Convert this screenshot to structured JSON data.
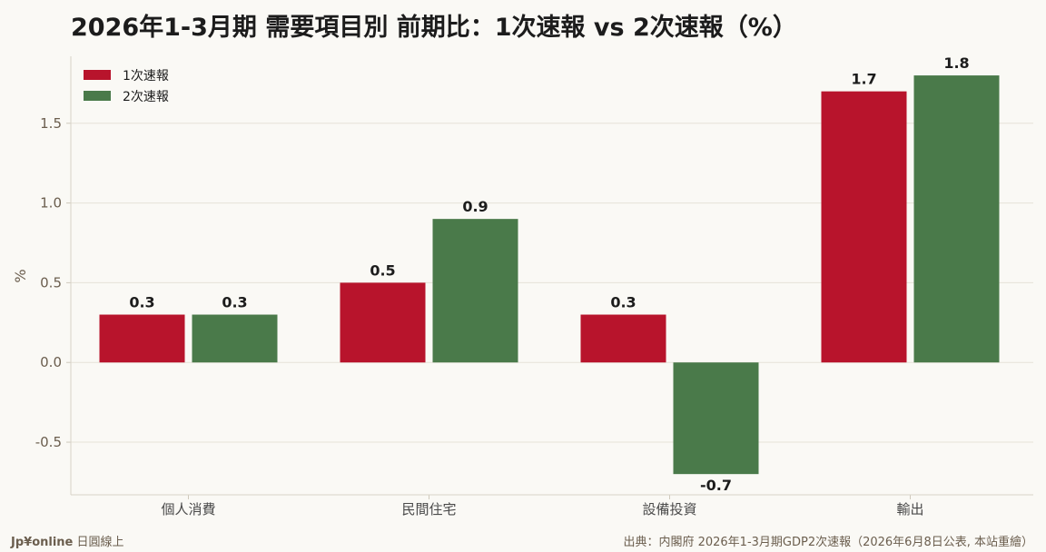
{
  "header": {
    "title": "2026年1-3月期 需要項目別 前期比：1次速報 vs 2次速報（%）"
  },
  "footer": {
    "brand": "Jp¥online",
    "brand_suffix": "日圓線上",
    "source": "出典：内閣府 2026年1-3月期GDP2次速報（2026年6月8日公表, 本站重繪）"
  },
  "chart_data": {
    "type": "bar",
    "categories": [
      "個人消費",
      "民間住宅",
      "設備投資",
      "輸出"
    ],
    "series": [
      {
        "name": "1次速報",
        "values": [
          0.3,
          0.5,
          0.3,
          1.7
        ],
        "color": "#b8142c"
      },
      {
        "name": "2次速報",
        "values": [
          0.3,
          0.9,
          -0.7,
          1.8
        ],
        "color": "#4a7a4a"
      }
    ],
    "value_labels": [
      [
        "0.3",
        "0.5",
        "0.3",
        "1.7"
      ],
      [
        "0.3",
        "0.9",
        "-0.7",
        "1.8"
      ]
    ],
    "ylabel": "%",
    "ylim": [
      -0.83,
      1.92
    ],
    "yticks": [
      -0.5,
      0.0,
      0.5,
      1.0,
      1.5
    ],
    "ytick_labels": [
      "-0.5",
      "0.0",
      "0.5",
      "1.0",
      "1.5"
    ],
    "grid": true,
    "legend_position": "top-left"
  }
}
